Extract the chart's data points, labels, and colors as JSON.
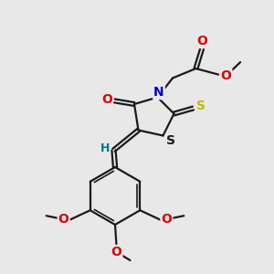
{
  "bg_color": "#e8e8e8",
  "bond_color": "#1a1a1a",
  "bond_width": 1.6,
  "atom_colors": {
    "O": "#dd0000",
    "N": "#0000cc",
    "S_thioxo": "#bbbb00",
    "S_ring": "#1a1a1a",
    "H": "#007777",
    "methoxy_O": "#dd0000"
  },
  "font_size_atoms": 10,
  "font_size_small": 9
}
